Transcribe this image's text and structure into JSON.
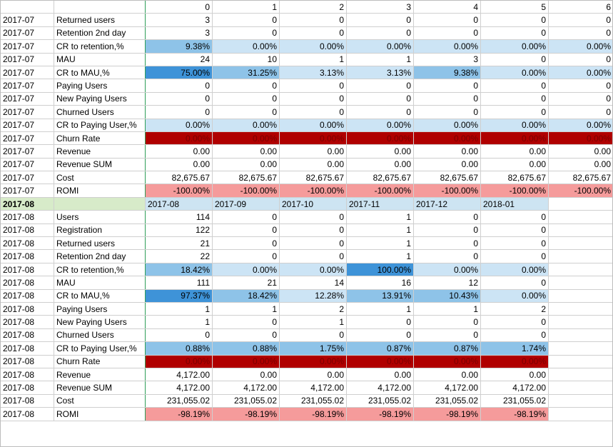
{
  "colors": {
    "churn_red": "#b00000",
    "romi_pink": "#f59b9b",
    "light_blue": "#cce4f5",
    "mid_blue": "#8ec3e8",
    "strong_blue": "#3e93d8",
    "group_green": "#d7ebc9",
    "header_blue": "#cde4f2"
  },
  "header": {
    "cols": [
      "",
      "",
      "0",
      "1",
      "2",
      "3",
      "4",
      "5",
      "6"
    ]
  },
  "block1": {
    "rows": [
      {
        "date": "2017-07",
        "label": "Returned users",
        "cells": [
          "3",
          "0",
          "0",
          "0",
          "0",
          "0",
          "0"
        ],
        "fill": "none"
      },
      {
        "date": "2017-07",
        "label": "Retention 2nd day",
        "cells": [
          "3",
          "0",
          "0",
          "0",
          "0",
          "0",
          "0"
        ],
        "fill": "none"
      },
      {
        "date": "2017-07",
        "label": "CR to retention,%",
        "cells": [
          "9.38%",
          "0.00%",
          "0.00%",
          "0.00%",
          "0.00%",
          "0.00%",
          "0.00%"
        ],
        "fill": "retention"
      },
      {
        "date": "2017-07",
        "label": "MAU",
        "cells": [
          "24",
          "10",
          "1",
          "1",
          "3",
          "0",
          "0"
        ],
        "fill": "none"
      },
      {
        "date": "2017-07",
        "label": "CR to MAU,%",
        "cells": [
          "75.00%",
          "31.25%",
          "3.13%",
          "3.13%",
          "9.38%",
          "0.00%",
          "0.00%"
        ],
        "fill": "mau"
      },
      {
        "date": "2017-07",
        "label": "Paying Users",
        "cells": [
          "0",
          "0",
          "0",
          "0",
          "0",
          "0",
          "0"
        ],
        "fill": "none"
      },
      {
        "date": "2017-07",
        "label": "New Paying Users",
        "cells": [
          "0",
          "0",
          "0",
          "0",
          "0",
          "0",
          "0"
        ],
        "fill": "none"
      },
      {
        "date": "2017-07",
        "label": "Churned Users",
        "cells": [
          "0",
          "0",
          "0",
          "0",
          "0",
          "0",
          "0"
        ],
        "fill": "none"
      },
      {
        "date": "2017-07",
        "label": "CR to Paying User,%",
        "cells": [
          "0.00%",
          "0.00%",
          "0.00%",
          "0.00%",
          "0.00%",
          "0.00%",
          "0.00%"
        ],
        "fill": "paying"
      },
      {
        "date": "2017-07",
        "label": "Churn Rate",
        "cells": [
          "0.00%",
          "0.00%",
          "0.00%",
          "0.00%",
          "0.00%",
          "0.00%",
          "0.00%"
        ],
        "fill": "churn"
      },
      {
        "date": "2017-07",
        "label": "Revenue",
        "cells": [
          "0.00",
          "0.00",
          "0.00",
          "0.00",
          "0.00",
          "0.00",
          "0.00"
        ],
        "fill": "none"
      },
      {
        "date": "2017-07",
        "label": "Revenue SUM",
        "cells": [
          "0.00",
          "0.00",
          "0.00",
          "0.00",
          "0.00",
          "0.00",
          "0.00"
        ],
        "fill": "none"
      },
      {
        "date": "2017-07",
        "label": "Cost",
        "cells": [
          "82,675.67",
          "82,675.67",
          "82,675.67",
          "82,675.67",
          "82,675.67",
          "82,675.67",
          "82,675.67"
        ],
        "fill": "none"
      },
      {
        "date": "2017-07",
        "label": "ROMI",
        "cells": [
          "-100.00%",
          "-100.00%",
          "-100.00%",
          "-100.00%",
          "-100.00%",
          "-100.00%",
          "-100.00%"
        ],
        "fill": "romi"
      }
    ],
    "cell_fills": {
      "retention": [
        "mid_blue",
        "light_blue",
        "light_blue",
        "light_blue",
        "light_blue",
        "light_blue",
        "light_blue"
      ],
      "mau": [
        "strong_blue",
        "mid_blue",
        "light_blue",
        "light_blue",
        "mid_blue",
        "light_blue",
        "light_blue"
      ],
      "paying": [
        "light_blue",
        "light_blue",
        "light_blue",
        "light_blue",
        "light_blue",
        "light_blue",
        "light_blue"
      ],
      "churn": [
        "churn_red",
        "churn_red",
        "churn_red",
        "churn_red",
        "churn_red",
        "churn_red",
        "churn_red"
      ],
      "romi": [
        "romi_pink",
        "romi_pink",
        "romi_pink",
        "romi_pink",
        "romi_pink",
        "romi_pink",
        "romi_pink"
      ]
    }
  },
  "group2": {
    "date": "2017-08",
    "months": [
      "2017-08",
      "2017-09",
      "2017-10",
      "2017-11",
      "2017-12",
      "2018-01"
    ]
  },
  "block2": {
    "rows": [
      {
        "date": "2017-08",
        "label": "Users",
        "cells": [
          "114",
          "0",
          "0",
          "1",
          "0",
          "0"
        ],
        "fill": "none"
      },
      {
        "date": "2017-08",
        "label": "Registration",
        "cells": [
          "122",
          "0",
          "0",
          "1",
          "0",
          "0"
        ],
        "fill": "none"
      },
      {
        "date": "2017-08",
        "label": "Returned users",
        "cells": [
          "21",
          "0",
          "0",
          "1",
          "0",
          "0"
        ],
        "fill": "none"
      },
      {
        "date": "2017-08",
        "label": "Retention 2nd day",
        "cells": [
          "22",
          "0",
          "0",
          "1",
          "0",
          "0"
        ],
        "fill": "none"
      },
      {
        "date": "2017-08",
        "label": "CR to retention,%",
        "cells": [
          "18.42%",
          "0.00%",
          "0.00%",
          "100.00%",
          "0.00%",
          "0.00%"
        ],
        "fill": "retention"
      },
      {
        "date": "2017-08",
        "label": "MAU",
        "cells": [
          "111",
          "21",
          "14",
          "16",
          "12",
          "0"
        ],
        "fill": "none"
      },
      {
        "date": "2017-08",
        "label": "CR to MAU,%",
        "cells": [
          "97.37%",
          "18.42%",
          "12.28%",
          "13.91%",
          "10.43%",
          "0.00%"
        ],
        "fill": "mau"
      },
      {
        "date": "2017-08",
        "label": "Paying Users",
        "cells": [
          "1",
          "1",
          "2",
          "1",
          "1",
          "2"
        ],
        "fill": "none"
      },
      {
        "date": "2017-08",
        "label": "New Paying Users",
        "cells": [
          "1",
          "0",
          "1",
          "0",
          "0",
          "0"
        ],
        "fill": "none"
      },
      {
        "date": "2017-08",
        "label": "Churned Users",
        "cells": [
          "0",
          "0",
          "0",
          "0",
          "0",
          "0"
        ],
        "fill": "none"
      },
      {
        "date": "2017-08",
        "label": "CR to Paying User,%",
        "cells": [
          "0.88%",
          "0.88%",
          "1.75%",
          "0.87%",
          "0.87%",
          "1.74%"
        ],
        "fill": "paying"
      },
      {
        "date": "2017-08",
        "label": "Churn Rate",
        "cells": [
          "0.00%",
          "0.00%",
          "0.00%",
          "0.00%",
          "0.00%",
          "0.00%"
        ],
        "fill": "churn"
      },
      {
        "date": "2017-08",
        "label": "Revenue",
        "cells": [
          "4,172.00",
          "0.00",
          "0.00",
          "0.00",
          "0.00",
          "0.00"
        ],
        "fill": "none"
      },
      {
        "date": "2017-08",
        "label": "Revenue SUM",
        "cells": [
          "4,172.00",
          "4,172.00",
          "4,172.00",
          "4,172.00",
          "4,172.00",
          "4,172.00"
        ],
        "fill": "none"
      },
      {
        "date": "2017-08",
        "label": "Cost",
        "cells": [
          "231,055.02",
          "231,055.02",
          "231,055.02",
          "231,055.02",
          "231,055.02",
          "231,055.02"
        ],
        "fill": "none"
      },
      {
        "date": "2017-08",
        "label": "ROMI",
        "cells": [
          "-98.19%",
          "-98.19%",
          "-98.19%",
          "-98.19%",
          "-98.19%",
          "-98.19%"
        ],
        "fill": "romi"
      }
    ],
    "cell_fills": {
      "retention": [
        "mid_blue",
        "light_blue",
        "light_blue",
        "strong_blue",
        "light_blue",
        "light_blue"
      ],
      "mau": [
        "strong_blue",
        "mid_blue",
        "light_blue",
        "mid_blue",
        "mid_blue",
        "light_blue"
      ],
      "paying": [
        "mid_blue",
        "mid_blue",
        "mid_blue",
        "mid_blue",
        "mid_blue",
        "mid_blue"
      ],
      "churn": [
        "churn_red",
        "churn_red",
        "churn_red",
        "churn_red",
        "churn_red",
        "churn_red"
      ],
      "romi": [
        "romi_pink",
        "romi_pink",
        "romi_pink",
        "romi_pink",
        "romi_pink",
        "romi_pink"
      ]
    }
  }
}
